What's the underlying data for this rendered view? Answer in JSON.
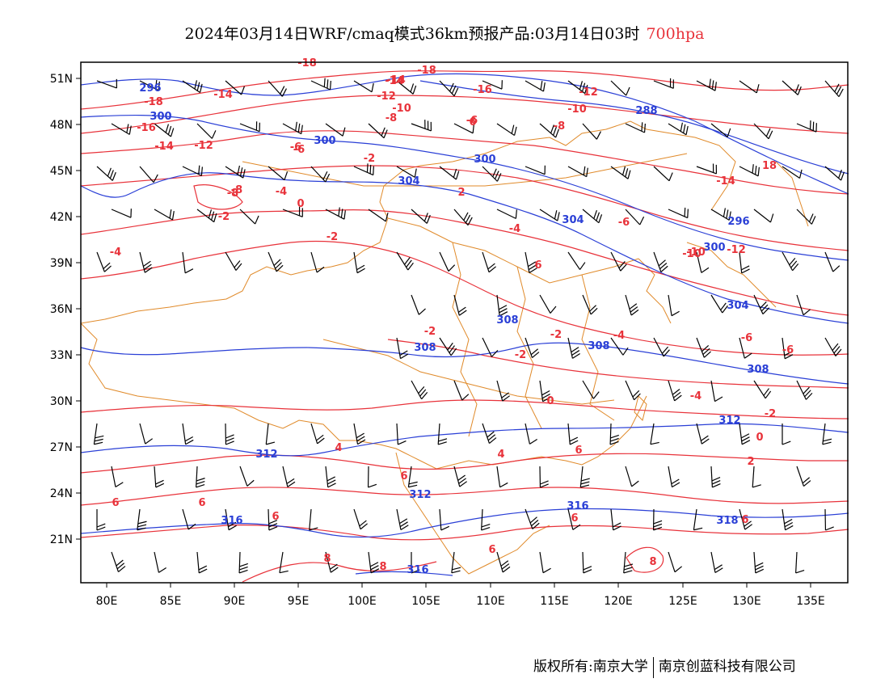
{
  "title": {
    "main": "2024年03月14日WRF/cmaq模式36km预报产品:03月14日03时",
    "level": "700hpa"
  },
  "axes": {
    "lon_labels": [
      "80E",
      "85E",
      "90E",
      "95E",
      "100E",
      "105E",
      "110E",
      "115E",
      "120E",
      "125E",
      "130E",
      "135E"
    ],
    "lat_labels": [
      "51N",
      "48N",
      "45N",
      "42N",
      "39N",
      "36N",
      "33N",
      "30N",
      "27N",
      "24N",
      "21N"
    ]
  },
  "contour_labels": {
    "geopotential": [
      "296",
      "300",
      "300",
      "300",
      "304",
      "304",
      "308",
      "308",
      "308",
      "308",
      "312",
      "312",
      "312",
      "316",
      "316",
      "316",
      "288",
      "296",
      "300",
      "304",
      "318"
    ],
    "temperature": [
      "-18",
      "-18",
      "-14",
      "-14",
      "-18",
      "-16",
      "-14",
      "-12",
      "-10",
      "-10",
      "-12",
      "-8",
      "-8",
      "-6",
      "-6",
      "-2",
      "-4",
      "-2",
      "-4",
      "-2",
      "0",
      "-6",
      "-10",
      "-12",
      "-16",
      "-14",
      "-4",
      "-2",
      "-2",
      "0",
      "-2",
      "-4",
      "-6",
      "-2",
      "0",
      "2",
      "4",
      "4",
      "6",
      "6",
      "6",
      "6",
      "6",
      "6",
      "6",
      "8",
      "8",
      "8",
      "6",
      "6",
      "18",
      "-8",
      "-12",
      "-8",
      "-4",
      "-6",
      "2",
      "6",
      "-6",
      "-14",
      "-10"
    ]
  },
  "colors": {
    "temperature": "#e8323a",
    "height": "#2a3fd6",
    "border": "#e08a2a",
    "wind": "#000000"
  },
  "footer": {
    "left": "版权所有:南京大学",
    "right": "南京创蓝科技有限公司"
  }
}
